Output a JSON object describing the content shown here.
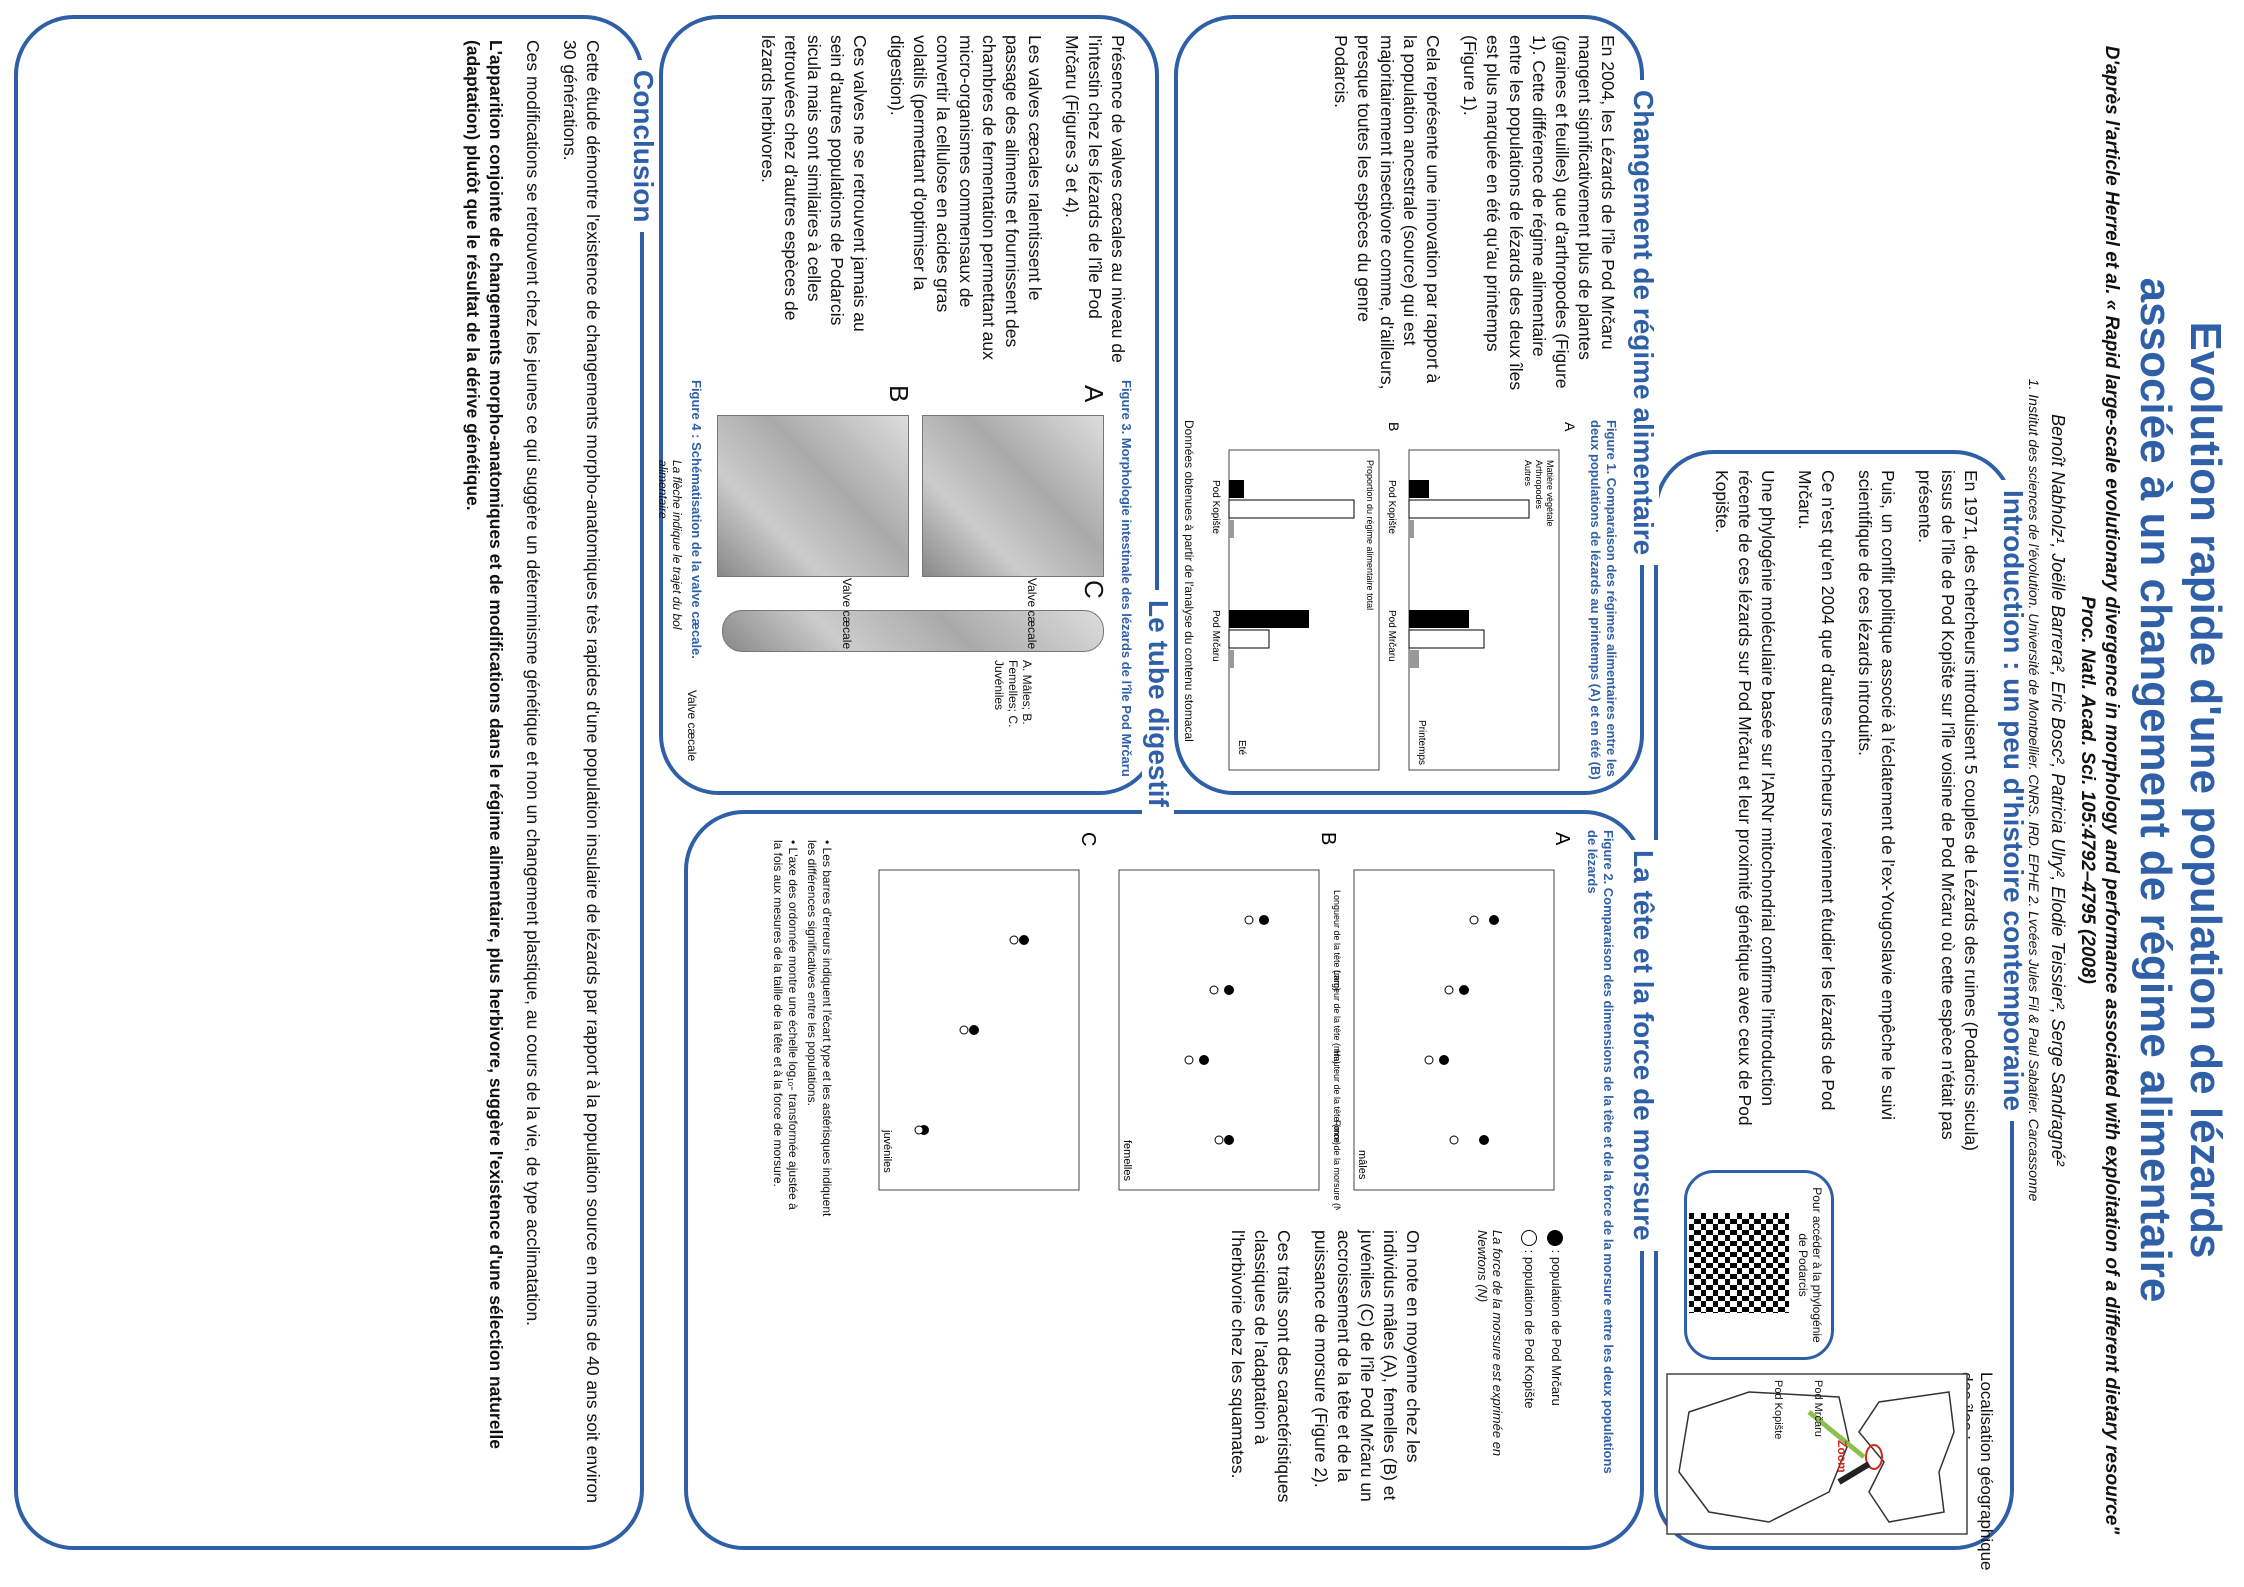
{
  "header": {
    "title_line1": "Evolution rapide d'une population de lézards",
    "title_line2": "associée à un changement de régime alimentaire",
    "subtitle_line1": "D'après l'article Herrel et al. « Rapid large-scale evolutionary divergence in morphology and performance associated with exploitation of a different dietary resource\"",
    "subtitle_line2": "Proc. Natl. Acad. Sci. 105:4792–4795 (2008)",
    "authors": "Benoît Nabholz¹, Joëlle Barrera², Eric Bosc², Patricia Ulry², Elodie Teissier², Serge Sandragné²",
    "affiliation": "1. Institut des sciences de l'évolution, Université de Montpellier, CNRS, IRD, EPHE  2. Lycées Jules Fil & Paul Sabatier, Carcassonne"
  },
  "intro": {
    "title": "Introduction : un peu d'histoire contemporaine",
    "p1": "En 1971, des chercheurs introduisent 5 couples de Lézards des ruines (Podarcis sicula) issus de l'île de Pod Kopište sur l'île voisine de Pod Mrčaru où cette espèce n'était pas présente.",
    "p2": "Puis, un conflit politique associé à l'éclatement de l'ex-Yougoslavie empêche le suivi scientifique de ces lézards introduits.",
    "p3": "Ce n'est qu'en 2004 que d'autres chercheurs reviennent étudier les lézards de Pod Mrčaru.",
    "p4": "Une phylogénie moléculaire basée sur l'ARNr mitochondrial confirme l'introduction récente de ces lézards sur Pod Mrčaru et leur proximité génétique avec ceux de Pod Kopište.",
    "qr_text": "Pour accéder à la phylogénie de Podarcis",
    "map_title": "Localisation géographique des îles :",
    "map_zoom": "Zoom",
    "map_label1": "Pod Mrčaru",
    "map_label2": "Pod Kopište"
  },
  "regime": {
    "title": "Changement de régime alimentaire",
    "p1": "En 2004, les Lézards de l'île Pod Mrčaru mangent significativement plus de plantes (graines et feuilles) que d'arthropodes (Figure 1). Cette différence de régime alimentaire entre les populations de lézards des deux îles est plus marquée en été qu'au printemps (Figure 1).",
    "p2": "Cela représente une innovation par rapport à la population ancestrale (source) qui est majoritairement insectivore comme, d'ailleurs, presque toutes les espèces du genre Podarcis.",
    "fig_caption": "Figure 1. Comparaison des régimes alimentaires entre les deux populations de lézards au printemps (A) et en été (B)",
    "fig_note": "Données obtenues à partir de l'analyse du contenu stomacal",
    "panel_a": "A",
    "panel_b": "B",
    "season_a": "Printemps",
    "season_b": "Eté",
    "ylabel": "Proportion du régime alimentaire total",
    "cat1": "Pod Kopište",
    "cat2": "Pod Mrčaru",
    "legend1": "Matière végétale",
    "legend2": "Arthropodes",
    "legend3": "Autres"
  },
  "force": {
    "title": "La tête et la force de morsure",
    "fig_caption": "Figure 2. Comparaison des dimensions de la tête et de la force de la morsure entre les deux populations de lézards",
    "legend_black": ": population de Pod Mrčaru",
    "legend_white": ": population de Pod Kopište",
    "note_force": "La force de la morsure est exprimée en Newtons (N)",
    "p1": "On note en moyenne chez les individus mâles (A), femelles (B) et juvéniles (C) de l'île Pod Mrčaru un accroissement de la tête et de la puissance de morsure (Figure 2).",
    "p2": "Ces traits sont des caractéristiques classiques de l'adaptation à l'herbivorie chez les squamates.",
    "bullet1": "Les barres d'erreurs indiquent l'écart type et les astérisques indiquent les différences significatives entre les populations.",
    "bullet2": "L'axe des ordonnée montre une échelle log₁₀- transformée ajustée à la fois aux mesures de la taille de la tête et à la force de morsure.",
    "panel_a": "A",
    "panel_b": "B",
    "panel_c": "C",
    "group_a": "mâles",
    "group_b": "femelles",
    "group_c": "juvéniles",
    "x1": "Longueur de la tête (mm)",
    "x2": "Largeur de la tête (mm)",
    "x3": "Hauteur de la tête (mm)",
    "x4": "Force de la morsure (N)"
  },
  "tube": {
    "title": "Le tube digestif",
    "p1": "Présence de valves cæcales au niveau de l'intestin chez les lézards de l'île Pod Mrčaru (Figures 3 et 4).",
    "p2": "Les valves cæcales ralentissent le passage des aliments et fournissent des chambres de fermentation permettant aux micro-organismes commensaux de convertir la cellulose en acides gras volatils (permettant d'optimiser la digestion).",
    "p3": "Ces valves ne se retrouvent jamais au sein d'autres populations de Podarcis sicula mais sont similaires à celles retrouvées chez d'autres espèces de lézards herbivores.",
    "fig3_caption": "Figure 3. Morphologie intestinale des lézards de l'île Pod Mrčaru",
    "fig3_a": "A",
    "fig3_b": "B",
    "fig3_c": "C",
    "fig3_valve": "Valve cæcale",
    "fig3_legend": "A. Mâles; B. Femelles; C. Juvéniles",
    "fig4_caption": "Figure 4 : Schématisation de la valve cæcale.",
    "fig4_note": "La flèche indique le trajet du bol alimentaire",
    "fig4_label": "Valve cæcale"
  },
  "conclusion": {
    "title": "Conclusion",
    "p1": "Cette étude démontre l'existence de changements morpho-anatomiques très rapides d'une population insulaire de lézards par rapport à la population source en moins de 40 ans soit environ 30 générations.",
    "p2": "Ces modifications se retrouvent chez les jeunes ce qui suggère un déterminisme génétique et non un changement plastique, au cours de la vie, de type acclimatation.",
    "p3": "L'apparition conjointe de changements morpho-anatomiques et de modifications dans le régime alimentaire, plus herbivore, suggère l'existence d'une sélection naturelle (adaptation) plutôt que le résultat de la dérive génétique."
  },
  "colors": {
    "accent": "#2f5fa7",
    "zoom_red": "#d7261e",
    "arrow_green": "#8cc04d"
  }
}
